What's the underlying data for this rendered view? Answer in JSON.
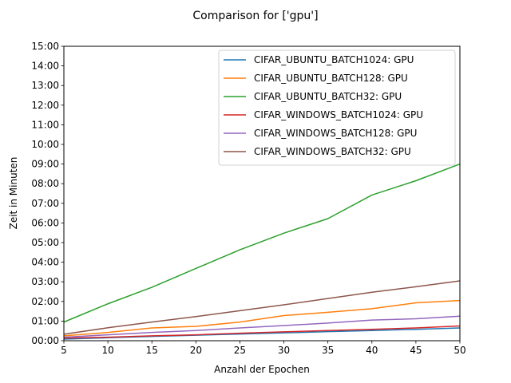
{
  "chart_data": {
    "type": "line",
    "title": "Comparison for ['gpu']",
    "xlabel": "Anzahl der Epochen",
    "ylabel": "Zeit in Minuten",
    "xlim": [
      5,
      50
    ],
    "ylim": [
      0,
      15
    ],
    "x_ticks": [
      "5",
      "10",
      "15",
      "20",
      "25",
      "30",
      "35",
      "40",
      "45",
      "50"
    ],
    "y_ticks": [
      "00:00",
      "01:00",
      "02:00",
      "03:00",
      "04:00",
      "05:00",
      "06:00",
      "07:00",
      "08:00",
      "09:00",
      "10:00",
      "11:00",
      "12:00",
      "13:00",
      "14:00",
      "15:00"
    ],
    "grid": false,
    "legend_position": "top-right",
    "x": [
      5,
      10,
      15,
      20,
      25,
      30,
      35,
      40,
      45,
      50
    ],
    "series": [
      {
        "name": "CIFAR_UBUNTU_BATCH1024: GPU",
        "color": "#1f77b4",
        "values": [
          0.08,
          0.15,
          0.22,
          0.28,
          0.34,
          0.4,
          0.46,
          0.52,
          0.58,
          0.65
        ]
      },
      {
        "name": "CIFAR_UBUNTU_BATCH128: GPU",
        "color": "#ff7f0e",
        "values": [
          0.25,
          0.42,
          0.65,
          0.73,
          0.95,
          1.28,
          1.45,
          1.63,
          1.93,
          2.05
        ]
      },
      {
        "name": "CIFAR_UBUNTU_BATCH32: GPU",
        "color": "#2ca02c",
        "values": [
          0.95,
          1.88,
          2.72,
          3.68,
          4.63,
          5.48,
          6.22,
          7.42,
          8.15,
          9.0
        ]
      },
      {
        "name": "CIFAR_WINDOWS_BATCH1024: GPU",
        "color": "#d62728",
        "values": [
          0.13,
          0.18,
          0.25,
          0.3,
          0.38,
          0.45,
          0.52,
          0.58,
          0.65,
          0.75
        ]
      },
      {
        "name": "CIFAR_WINDOWS_BATCH128: GPU",
        "color": "#9467bd",
        "values": [
          0.18,
          0.3,
          0.42,
          0.52,
          0.65,
          0.77,
          0.9,
          1.05,
          1.12,
          1.25
        ]
      },
      {
        "name": "CIFAR_WINDOWS_BATCH32: GPU",
        "color": "#8c564b",
        "values": [
          0.33,
          0.66,
          0.95,
          1.23,
          1.53,
          1.83,
          2.15,
          2.47,
          2.75,
          3.05
        ]
      }
    ]
  }
}
